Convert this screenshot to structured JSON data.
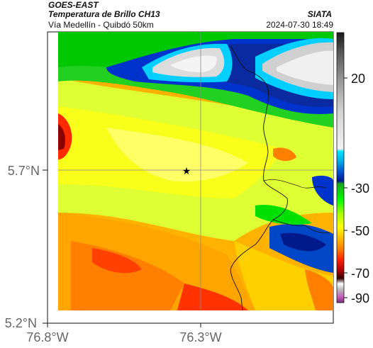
{
  "header": {
    "satellite": "GOES-EAST",
    "product": "Temperatura de Brillo CH13",
    "route": "Vía Medellín - Quibdó 50km",
    "source": "SIATA",
    "timestamp": "2024-07-30 18:49"
  },
  "axes": {
    "lat_ticks": [
      {
        "value": 5.7,
        "label": "5.7°N"
      },
      {
        "value": 5.2,
        "label": "5.2°N"
      }
    ],
    "lon_ticks": [
      {
        "value": -76.8,
        "label": "76.8°W"
      },
      {
        "value": -76.3,
        "label": "76.3°W"
      }
    ]
  },
  "colorbar": {
    "ticks": [
      {
        "value": 20,
        "label": "20"
      },
      {
        "value": -30,
        "label": "-30"
      },
      {
        "value": -50,
        "label": "-50"
      },
      {
        "value": -70,
        "label": "-70"
      },
      {
        "value": -90,
        "label": "-90"
      }
    ],
    "colors": [
      "#1a1a1a",
      "#5a5a5a",
      "#9a9a9a",
      "#d6d6d6",
      "#f2f2f2",
      "#00e5ff",
      "#00a6e6",
      "#0047c7",
      "#001a8c",
      "#1aa61a",
      "#00ff00",
      "#a6ff00",
      "#ffff00",
      "#ffbf00",
      "#ff8000",
      "#ff2200",
      "#b30000",
      "#330000",
      "#bdbdbd",
      "#c45ab8"
    ]
  },
  "map": {
    "marker": "star-icon"
  }
}
